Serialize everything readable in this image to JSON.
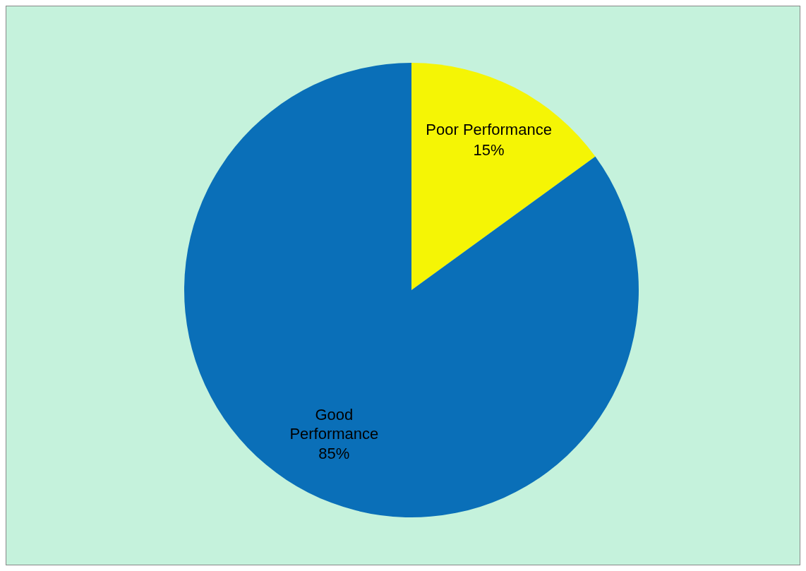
{
  "chart_data": {
    "type": "pie",
    "categories": [
      "Poor Performance",
      "Good Performance"
    ],
    "values": [
      15,
      85
    ],
    "colors": [
      "#f5f505",
      "#0a6fb8"
    ],
    "value_labels": [
      "15%",
      "85%"
    ],
    "legend": false
  }
}
